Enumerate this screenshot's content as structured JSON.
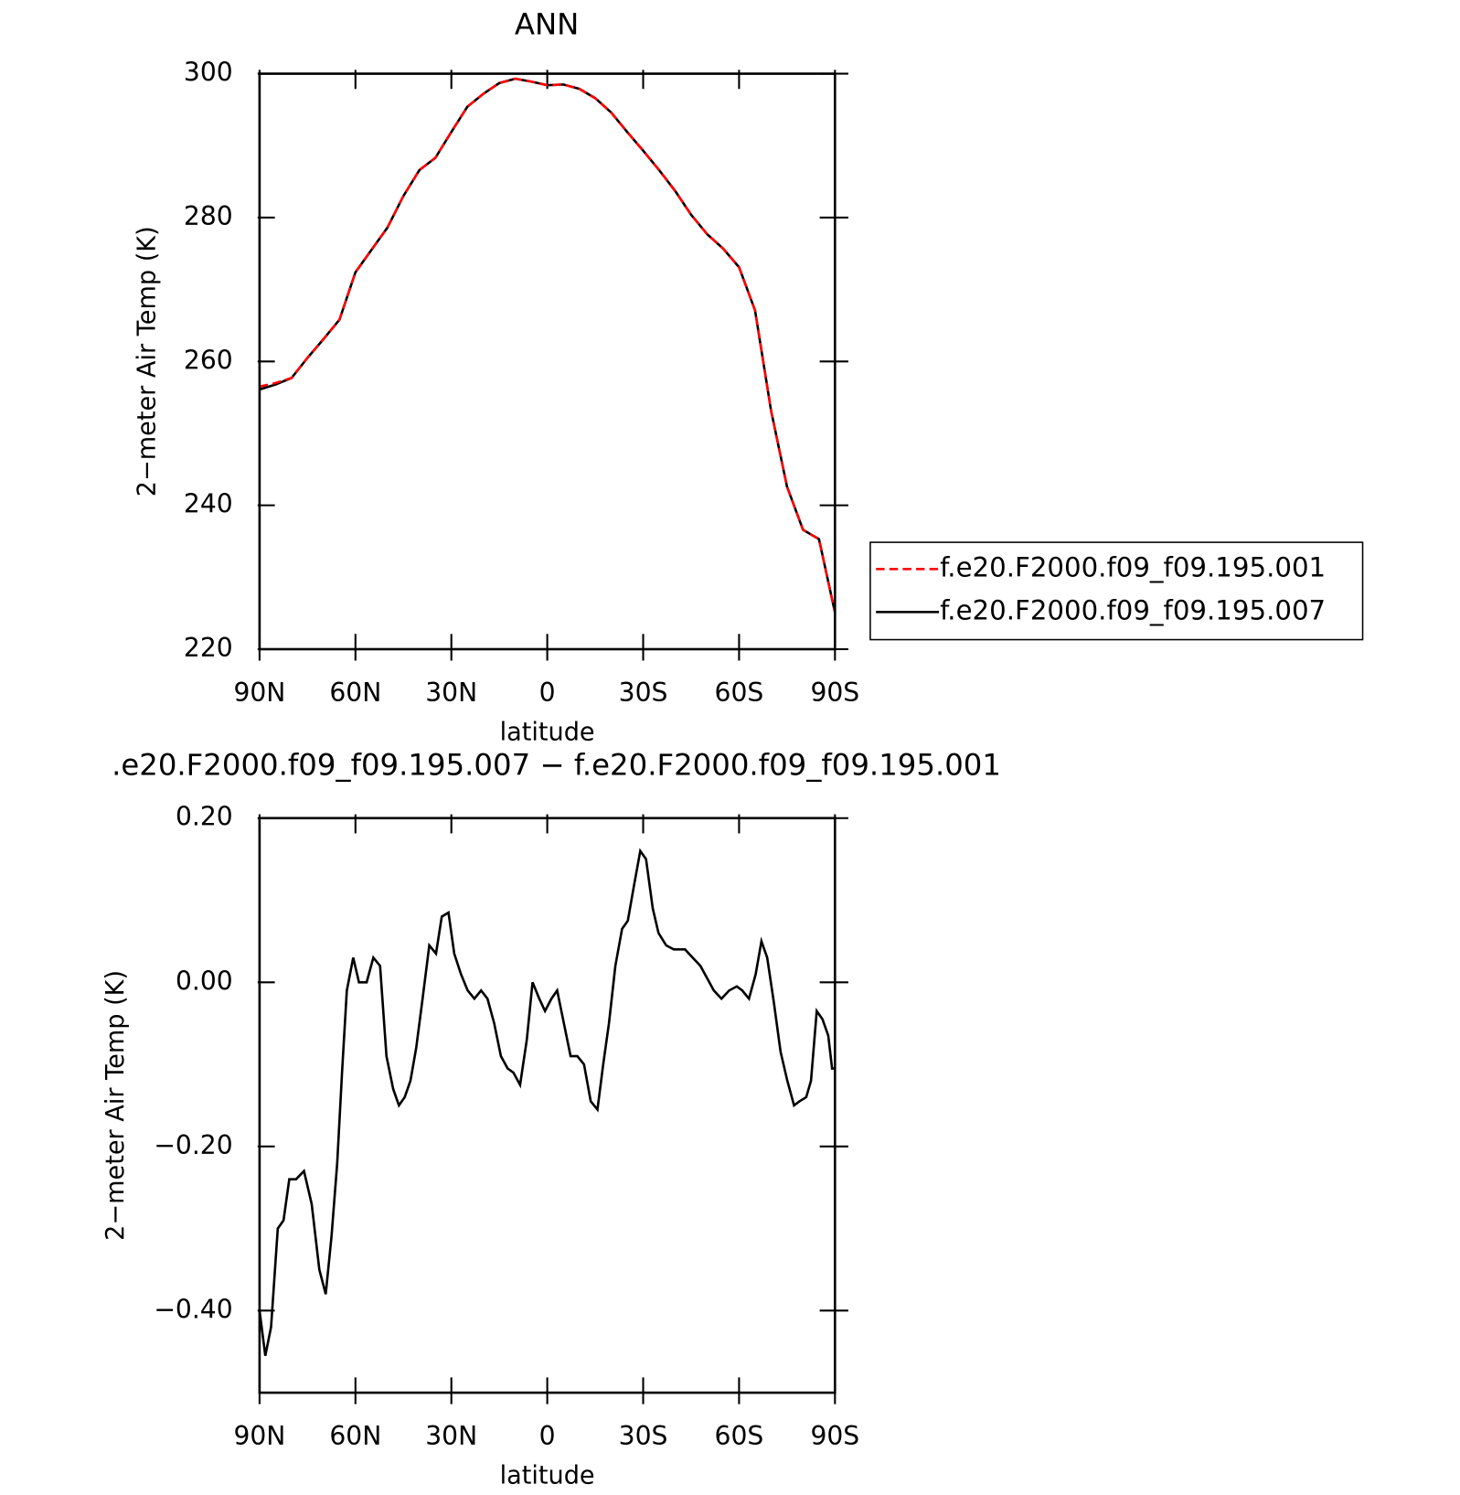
{
  "chart_data": [
    {
      "type": "line",
      "title": "ANN",
      "xlabel": "latitude",
      "ylabel": "2−meter Air Temp (K)",
      "x": [
        90,
        85,
        80,
        75,
        70,
        65,
        60,
        55,
        50,
        45,
        40,
        35,
        30,
        25,
        20,
        15,
        10,
        5,
        0,
        -5,
        -10,
        -15,
        -20,
        -25,
        -30,
        -35,
        -40,
        -45,
        -50,
        -55,
        -60,
        -65,
        -70,
        -75,
        -80,
        -85,
        -90
      ],
      "series": [
        {
          "name": "f.e20.F2000.f09_f09.195.001",
          "color": "#ff0000",
          "linestyle": "dashed",
          "values": [
            256.5,
            257.0,
            257.7,
            260.5,
            263.1,
            265.8,
            272.4,
            275.5,
            278.6,
            283.0,
            286.6,
            288.3,
            291.9,
            295.4,
            297.2,
            298.7,
            299.3,
            298.9,
            298.4,
            298.5,
            297.9,
            296.6,
            294.6,
            291.9,
            289.3,
            286.6,
            283.7,
            280.4,
            277.7,
            275.7,
            273.1,
            267.1,
            253.2,
            242.6,
            236.6,
            235.3,
            225.1
          ]
        },
        {
          "name": "f.e20.F2000.f09_f09.195.007",
          "color": "#000000",
          "linestyle": "solid",
          "values": [
            256.1,
            256.8,
            257.7,
            260.5,
            263.1,
            265.8,
            272.4,
            275.5,
            278.6,
            283.0,
            286.6,
            288.3,
            291.9,
            295.4,
            297.2,
            298.7,
            299.3,
            298.9,
            298.4,
            298.5,
            297.9,
            296.6,
            294.6,
            291.9,
            289.3,
            286.6,
            283.7,
            280.4,
            277.7,
            275.7,
            273.1,
            267.1,
            253.2,
            242.6,
            236.6,
            235.3,
            225.1
          ]
        }
      ],
      "xlim": [
        90,
        -90
      ],
      "xticks": [
        {
          "value": 90,
          "label": "90N"
        },
        {
          "value": 60,
          "label": "60N"
        },
        {
          "value": 30,
          "label": "30N"
        },
        0,
        {
          "value": -30,
          "label": "30S"
        },
        {
          "value": -60,
          "label": "60S"
        },
        {
          "value": -90,
          "label": "90S"
        }
      ],
      "ylim": [
        220,
        300
      ],
      "yticks": [
        220,
        240,
        260,
        280,
        300
      ],
      "legend": "right"
    },
    {
      "type": "line",
      "title": ".e20.F2000.f09_f09.195.007 − f.e20.F2000.f09_f09.195.001",
      "xlabel": "latitude",
      "ylabel": "2−meter Air Temp (K)",
      "x": [
        90,
        88.2,
        86.4,
        84.3,
        82.5,
        80.7,
        78.6,
        76.1,
        73.7,
        71.3,
        69.3,
        67.5,
        65.7,
        64.2,
        62.7,
        60.7,
        58.9,
        56.5,
        54.4,
        52.3,
        50.3,
        48.2,
        46.4,
        44.6,
        42.8,
        41.0,
        39.0,
        36.9,
        34.8,
        33.0,
        30.9,
        29.1,
        27.0,
        24.9,
        22.8,
        20.7,
        18.7,
        16.6,
        14.5,
        12.4,
        10.6,
        8.5,
        6.4,
        4.6,
        2.5,
        0.7,
        -1.3,
        -3.1,
        -5.2,
        -7.3,
        -9.4,
        -11.5,
        -13.6,
        -15.7,
        -17.5,
        -19.3,
        -21.3,
        -23.4,
        -25.2,
        -27.0,
        -29.1,
        -30.9,
        -33.0,
        -34.8,
        -37.2,
        -39.6,
        -43.1,
        -45.5,
        -47.9,
        -50.0,
        -52.1,
        -54.5,
        -56.9,
        -59.3,
        -61.0,
        -63.1,
        -65.2,
        -67.0,
        -68.8,
        -70.9,
        -73.0,
        -75.1,
        -77.2,
        -78.9,
        -81.0,
        -82.5,
        -84.3,
        -86.1,
        -87.9,
        -89.1,
        -90
      ],
      "series": [
        {
          "color": "#000000",
          "linestyle": "solid",
          "values": [
            -0.4,
            -0.455,
            -0.42,
            -0.3,
            -0.29,
            -0.24,
            -0.24,
            -0.23,
            -0.27,
            -0.35,
            -0.38,
            -0.31,
            -0.22,
            -0.11,
            -0.01,
            0.03,
            0.0,
            0.0,
            0.03,
            0.02,
            -0.09,
            -0.13,
            -0.15,
            -0.14,
            -0.12,
            -0.08,
            -0.02,
            0.045,
            0.035,
            0.08,
            0.085,
            0.035,
            0.01,
            -0.01,
            -0.02,
            -0.01,
            -0.02,
            -0.05,
            -0.09,
            -0.105,
            -0.11,
            -0.125,
            -0.07,
            0.0,
            -0.02,
            -0.035,
            -0.02,
            -0.01,
            -0.05,
            -0.09,
            -0.09,
            -0.1,
            -0.145,
            -0.155,
            -0.1,
            -0.05,
            0.02,
            0.065,
            0.075,
            0.115,
            0.16,
            0.15,
            0.09,
            0.06,
            0.045,
            0.04,
            0.04,
            0.03,
            0.02,
            0.005,
            -0.01,
            -0.02,
            -0.01,
            -0.005,
            -0.01,
            -0.02,
            0.01,
            0.05,
            0.03,
            -0.025,
            -0.085,
            -0.12,
            -0.15,
            -0.145,
            -0.14,
            -0.12,
            -0.035,
            -0.045,
            -0.065,
            -0.105,
            -0.105
          ]
        }
      ],
      "xlim": [
        90,
        -90
      ],
      "xticks": [
        {
          "value": 90,
          "label": "90N"
        },
        {
          "value": 60,
          "label": "60N"
        },
        {
          "value": 30,
          "label": "30N"
        },
        0,
        {
          "value": -30,
          "label": "30S"
        },
        {
          "value": -60,
          "label": "60S"
        },
        {
          "value": -90,
          "label": "90S"
        }
      ],
      "ylim": [
        -0.5,
        0.2
      ],
      "yticks": [
        {
          "value": -0.4,
          "label": "−0.40"
        },
        {
          "value": -0.2,
          "label": "−0.20"
        },
        {
          "value": 0,
          "label": "0.00"
        },
        {
          "value": 0.2,
          "label": "0.20"
        }
      ]
    }
  ]
}
